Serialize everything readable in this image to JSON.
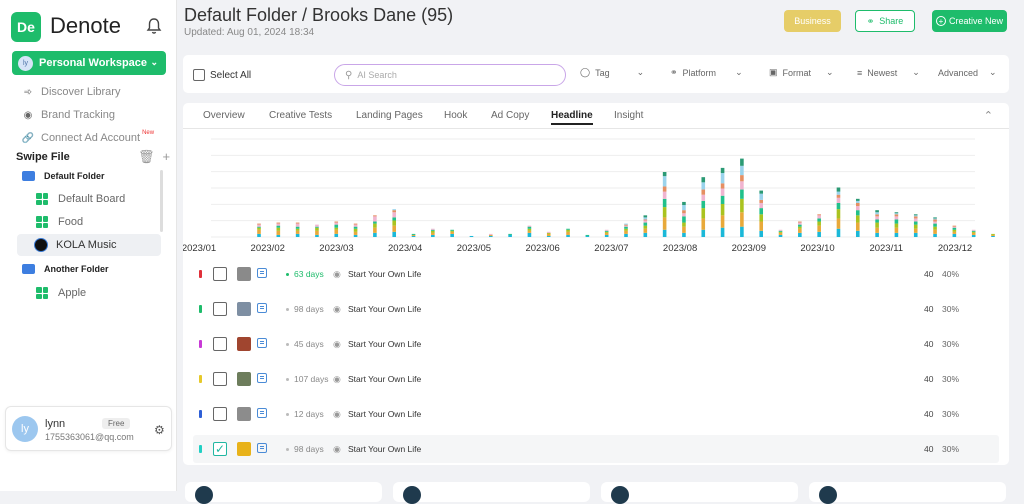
{
  "app": {
    "logo_mark": "De",
    "name": "Denote"
  },
  "workspace": {
    "avatar": "ly",
    "label": "Personal Workspace"
  },
  "nav": [
    {
      "label": "Discover Library",
      "icon": "compass-icon"
    },
    {
      "label": "Brand Tracking",
      "icon": "target-icon"
    },
    {
      "label": "Connect Ad Account",
      "icon": "link-icon",
      "badge": "New"
    }
  ],
  "swipe": {
    "title": "Swipe File",
    "folders": [
      {
        "name": "Default Folder",
        "boards": [
          "Default Board",
          "Food",
          "KOLA Music"
        ]
      },
      {
        "name": "Another Folder",
        "boards": [
          "Apple"
        ]
      }
    ],
    "active_board": "KOLA Music"
  },
  "user": {
    "avatar": "ly",
    "name": "lynn",
    "plan": "Free",
    "email": "1755363061@qq.com"
  },
  "header": {
    "title": "Default Folder / Brooks Dane (95)",
    "updated": "Updated: Aug 01, 2024 18:34"
  },
  "actions": {
    "business": "Business",
    "share": "Share",
    "new": "Creative New"
  },
  "filters": {
    "select_all": "Select  All",
    "search_placeholder": "AI Search",
    "tag": "Tag",
    "platform": "Platform",
    "format": "Format",
    "sort": "Newest",
    "advanced": "Advanced"
  },
  "tabs": [
    "Overview",
    "Creative Tests",
    "Landing Pages",
    "Hook",
    "Ad Copy",
    "Headline",
    "Insight"
  ],
  "active_tab": "Headline",
  "chart_data": {
    "type": "bar",
    "stacked": true,
    "categories": [
      "2023/01",
      "2023/02",
      "2023/03",
      "2023/04",
      "2023/05",
      "2023/06",
      "2023/07",
      "2023/08",
      "2023/09",
      "2023/10",
      "2023/11",
      "2023/12"
    ],
    "series_colors": [
      "#1bb8d8",
      "#e8a93a",
      "#aac320",
      "#21c18b",
      "#f0b4d0",
      "#e58f62",
      "#9ad3ec",
      "#2b9a74"
    ],
    "bars": [
      [
        3,
        4,
        2,
        1,
        2,
        1,
        0,
        0
      ],
      [
        2,
        4,
        3,
        2,
        2,
        1,
        0,
        0
      ],
      [
        3,
        3,
        2,
        2,
        3,
        1,
        0,
        0
      ],
      [
        2,
        4,
        3,
        1,
        2,
        0,
        0,
        0
      ],
      [
        3,
        4,
        2,
        3,
        2,
        1,
        0,
        0
      ],
      [
        2,
        3,
        3,
        2,
        2,
        1,
        0,
        0
      ],
      [
        4,
        5,
        4,
        2,
        5,
        1,
        0,
        0
      ],
      [
        5,
        6,
        5,
        3,
        5,
        2,
        1,
        0
      ],
      [
        1,
        1,
        0,
        1,
        0,
        0,
        0,
        0
      ],
      [
        2,
        2,
        2,
        1,
        1,
        0,
        0,
        0
      ],
      [
        3,
        2,
        1,
        1,
        0,
        0,
        0,
        0
      ],
      [
        1,
        0,
        0,
        0,
        0,
        0,
        0,
        0
      ],
      [
        1,
        1,
        0,
        0,
        1,
        0,
        0,
        0
      ],
      [
        2,
        0,
        0,
        1,
        0,
        0,
        0,
        0
      ],
      [
        4,
        2,
        2,
        2,
        1,
        0,
        0,
        0
      ],
      [
        1,
        2,
        1,
        0,
        1,
        0,
        0,
        0
      ],
      [
        2,
        3,
        2,
        1,
        0,
        0,
        0,
        0
      ],
      [
        1,
        0,
        0,
        1,
        0,
        0,
        0,
        0
      ],
      [
        2,
        2,
        1,
        1,
        1,
        0,
        0,
        0
      ],
      [
        3,
        3,
        2,
        2,
        1,
        1,
        1,
        0
      ],
      [
        4,
        4,
        3,
        3,
        2,
        1,
        2,
        2
      ],
      [
        7,
        12,
        10,
        8,
        7,
        5,
        10,
        4
      ],
      [
        4,
        6,
        4,
        6,
        3,
        3,
        5,
        3
      ],
      [
        7,
        11,
        10,
        7,
        6,
        5,
        7,
        5
      ],
      [
        9,
        12,
        11,
        8,
        7,
        5,
        10,
        5
      ],
      [
        10,
        14,
        13,
        9,
        8,
        6,
        9,
        7
      ],
      [
        6,
        9,
        7,
        6,
        5,
        3,
        6,
        3
      ],
      [
        2,
        2,
        1,
        1,
        1,
        0,
        0,
        0
      ],
      [
        4,
        4,
        2,
        2,
        2,
        1,
        0,
        0
      ],
      [
        5,
        6,
        4,
        3,
        3,
        1,
        0,
        0
      ],
      [
        8,
        10,
        9,
        6,
        5,
        3,
        3,
        4
      ],
      [
        6,
        8,
        7,
        5,
        4,
        3,
        2,
        2
      ],
      [
        4,
        5,
        5,
        3,
        3,
        2,
        2,
        2
      ],
      [
        4,
        5,
        4,
        4,
        3,
        2,
        1,
        1
      ],
      [
        4,
        4,
        4,
        3,
        3,
        2,
        1,
        1
      ],
      [
        3,
        4,
        3,
        3,
        2,
        2,
        1,
        1
      ],
      [
        3,
        2,
        2,
        2,
        1,
        1,
        0,
        0
      ],
      [
        2,
        2,
        1,
        1,
        1,
        0,
        0,
        0
      ],
      [
        1,
        1,
        1,
        0,
        0,
        0,
        0,
        0
      ]
    ],
    "ylim": [
      0,
      95
    ],
    "grid": true
  },
  "rows": [
    {
      "color": "#e0303a",
      "days": "63 days",
      "title": "Start Your Own Life",
      "count": "40",
      "pct": "40%",
      "green": true,
      "checked": false,
      "thumb": "#8a8a8a"
    },
    {
      "color": "#1ebc6b",
      "days": "98 days",
      "title": "Start Your Own Life",
      "count": "40",
      "pct": "30%",
      "green": false,
      "checked": false,
      "thumb": "#7e8fa3"
    },
    {
      "color": "#c83ad6",
      "days": "45 days",
      "title": "Start Your Own Life",
      "count": "40",
      "pct": "30%",
      "green": false,
      "checked": false,
      "thumb": "#a0452f"
    },
    {
      "color": "#e6c92a",
      "days": "107 days",
      "title": "Start Your Own Life",
      "count": "40",
      "pct": "30%",
      "green": false,
      "checked": false,
      "thumb": "#6d7d5c"
    },
    {
      "color": "#2f5fd6",
      "days": "12 days",
      "title": "Start Your Own Life",
      "count": "40",
      "pct": "30%",
      "green": false,
      "checked": false,
      "thumb": "#8c8c8c"
    },
    {
      "color": "#21d0c4",
      "days": "98 days",
      "title": "Start Your Own Life",
      "count": "40",
      "pct": "30%",
      "green": false,
      "checked": true,
      "thumb": "#e8b21a"
    }
  ]
}
